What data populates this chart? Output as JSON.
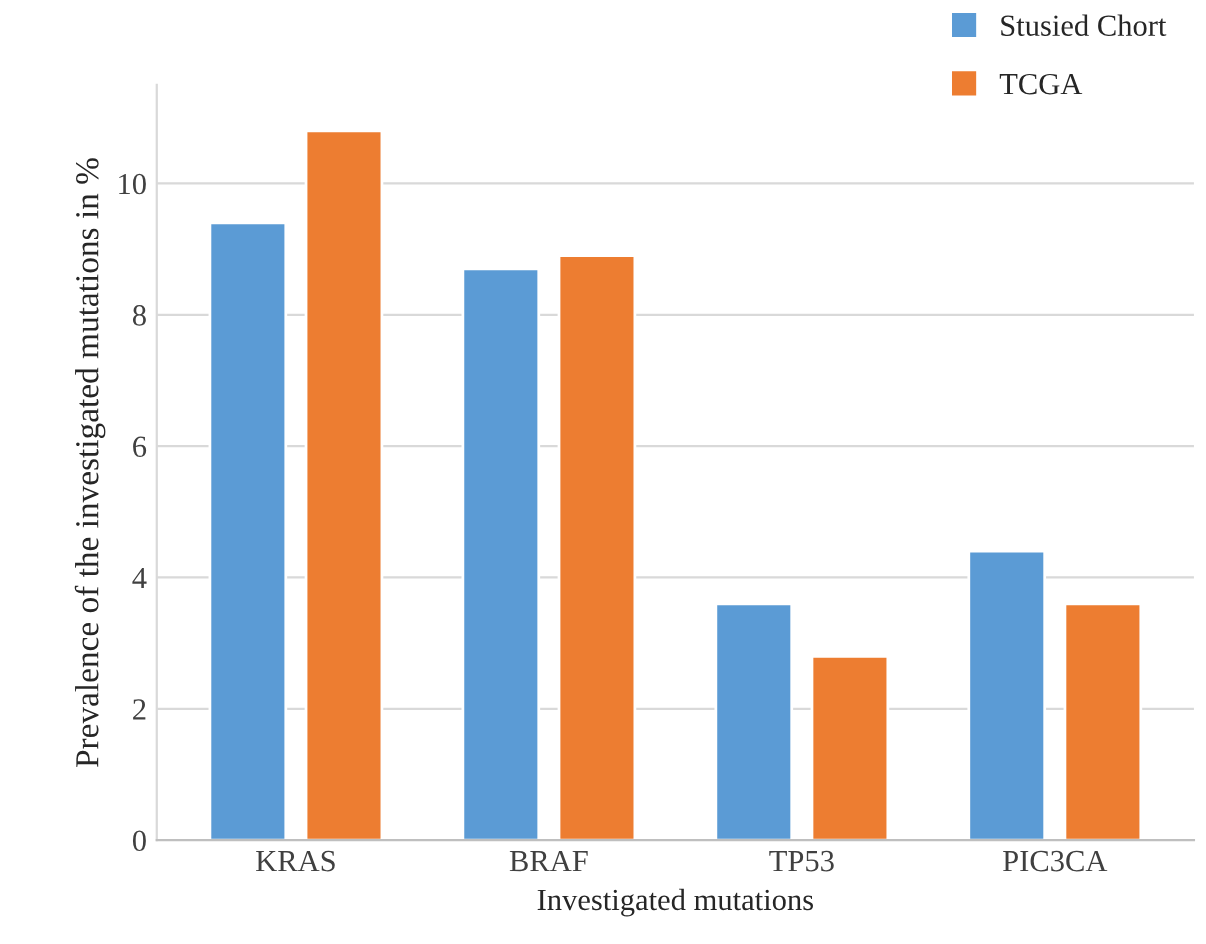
{
  "chart_data": {
    "type": "bar",
    "xlabel": "Investigated mutations",
    "ylabel": "Prevalence of the investigated mutations in %",
    "categories": [
      "KRAS",
      "BRAF",
      "TP53",
      "PIC3CA"
    ],
    "series": [
      {
        "name": "Stusied Chort",
        "color": "#5b9bd5",
        "values": [
          9.4,
          8.7,
          3.6,
          4.4
        ]
      },
      {
        "name": "TCGA",
        "color": "#ed7d31",
        "values": [
          10.8,
          8.9,
          2.8,
          3.6
        ]
      }
    ],
    "ylim": [
      0,
      11.5
    ],
    "yticks": [
      0,
      2,
      4,
      6,
      8,
      10
    ],
    "grid": "y",
    "legend": "top right"
  }
}
